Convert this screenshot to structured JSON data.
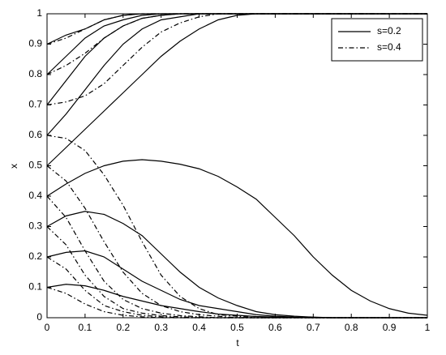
{
  "chart_data": {
    "type": "line",
    "x_label": "t",
    "y_label": "x",
    "x": [
      0,
      0.05,
      0.1,
      0.15,
      0.2,
      0.25,
      0.3,
      0.35,
      0.4,
      0.45,
      0.5,
      0.55,
      0.6,
      0.65,
      0.7,
      0.75,
      0.8,
      0.85,
      0.9,
      0.95,
      1
    ],
    "xlim": [
      0,
      1
    ],
    "ylim": [
      0,
      1
    ],
    "xticks": [
      0,
      0.1,
      0.2,
      0.3,
      0.4,
      0.5,
      0.6,
      0.7,
      0.8,
      0.9,
      1
    ],
    "yticks": [
      0,
      0.1,
      0.2,
      0.3,
      0.4,
      0.5,
      0.6,
      0.7,
      0.8,
      0.9,
      1
    ],
    "grid": false,
    "legend": "upper right",
    "series": [
      {
        "name": "s=0.2",
        "color": "#000000",
        "line_style": "solid",
        "values": [
          [
            0.9,
            0.93,
            0.95,
            0.98,
            0.995,
            1,
            1,
            1,
            1,
            1,
            1,
            1,
            1,
            1,
            1,
            1,
            1,
            1,
            1,
            1,
            1
          ],
          [
            0.8,
            0.86,
            0.92,
            0.96,
            0.98,
            0.995,
            1,
            1,
            1,
            1,
            1,
            1,
            1,
            1,
            1,
            1,
            1,
            1,
            1,
            1,
            1
          ],
          [
            0.7,
            0.78,
            0.86,
            0.92,
            0.96,
            0.985,
            0.995,
            1,
            1,
            1,
            1,
            1,
            1,
            1,
            1,
            1,
            1,
            1,
            1,
            1,
            1
          ],
          [
            0.6,
            0.67,
            0.75,
            0.83,
            0.9,
            0.95,
            0.98,
            0.99,
            1,
            1,
            1,
            1,
            1,
            1,
            1,
            1,
            1,
            1,
            1,
            1,
            1
          ],
          [
            0.5,
            0.56,
            0.62,
            0.68,
            0.74,
            0.8,
            0.86,
            0.91,
            0.95,
            0.98,
            0.995,
            1,
            1,
            1,
            1,
            1,
            1,
            1,
            1,
            1,
            1
          ],
          [
            0.4,
            0.44,
            0.475,
            0.5,
            0.515,
            0.52,
            0.515,
            0.505,
            0.49,
            0.465,
            0.43,
            0.39,
            0.33,
            0.27,
            0.2,
            0.14,
            0.09,
            0.055,
            0.03,
            0.015,
            0.008
          ],
          [
            0.3,
            0.335,
            0.35,
            0.34,
            0.31,
            0.27,
            0.21,
            0.15,
            0.1,
            0.065,
            0.04,
            0.02,
            0.01,
            0.005,
            0.002,
            0,
            0,
            0,
            0,
            0,
            0
          ],
          [
            0.2,
            0.215,
            0.22,
            0.2,
            0.16,
            0.12,
            0.09,
            0.06,
            0.04,
            0.03,
            0.02,
            0.01,
            0.005,
            0.002,
            0.001,
            0,
            0,
            0,
            0,
            0,
            0
          ],
          [
            0.1,
            0.11,
            0.105,
            0.09,
            0.07,
            0.055,
            0.04,
            0.03,
            0.02,
            0.012,
            0.008,
            0.004,
            0.002,
            0.001,
            0,
            0,
            0,
            0,
            0,
            0,
            0
          ]
        ]
      },
      {
        "name": "s=0.4",
        "color": "#000000",
        "line_style": "dashdot",
        "values": [
          [
            0.9,
            0.92,
            0.95,
            0.98,
            0.995,
            1,
            1,
            1,
            1,
            1,
            1,
            1,
            1,
            1,
            1,
            1,
            1,
            1,
            1,
            1,
            1
          ],
          [
            0.8,
            0.83,
            0.87,
            0.92,
            0.96,
            0.985,
            0.995,
            1,
            1,
            1,
            1,
            1,
            1,
            1,
            1,
            1,
            1,
            1,
            1,
            1,
            1
          ],
          [
            0.7,
            0.71,
            0.73,
            0.77,
            0.83,
            0.89,
            0.94,
            0.97,
            0.99,
            1,
            1,
            1,
            1,
            1,
            1,
            1,
            1,
            1,
            1,
            1,
            1
          ],
          [
            0.6,
            0.59,
            0.55,
            0.47,
            0.37,
            0.25,
            0.14,
            0.07,
            0.03,
            0.01,
            0.005,
            0,
            0,
            0,
            0,
            0,
            0,
            0,
            0,
            0,
            0
          ],
          [
            0.5,
            0.45,
            0.36,
            0.25,
            0.15,
            0.08,
            0.04,
            0.02,
            0.01,
            0.005,
            0,
            0,
            0,
            0,
            0,
            0,
            0,
            0,
            0,
            0,
            0
          ],
          [
            0.4,
            0.33,
            0.22,
            0.12,
            0.06,
            0.03,
            0.015,
            0.007,
            0.003,
            0,
            0,
            0,
            0,
            0,
            0,
            0,
            0,
            0,
            0,
            0,
            0
          ],
          [
            0.3,
            0.24,
            0.14,
            0.07,
            0.03,
            0.015,
            0.007,
            0.003,
            0,
            0,
            0,
            0,
            0,
            0,
            0,
            0,
            0,
            0,
            0,
            0,
            0
          ],
          [
            0.2,
            0.16,
            0.09,
            0.04,
            0.02,
            0.008,
            0.003,
            0,
            0,
            0,
            0,
            0,
            0,
            0,
            0,
            0,
            0,
            0,
            0,
            0,
            0
          ],
          [
            0.1,
            0.08,
            0.045,
            0.02,
            0.008,
            0.003,
            0,
            0,
            0,
            0,
            0,
            0,
            0,
            0,
            0,
            0,
            0,
            0,
            0,
            0,
            0
          ]
        ]
      }
    ]
  }
}
